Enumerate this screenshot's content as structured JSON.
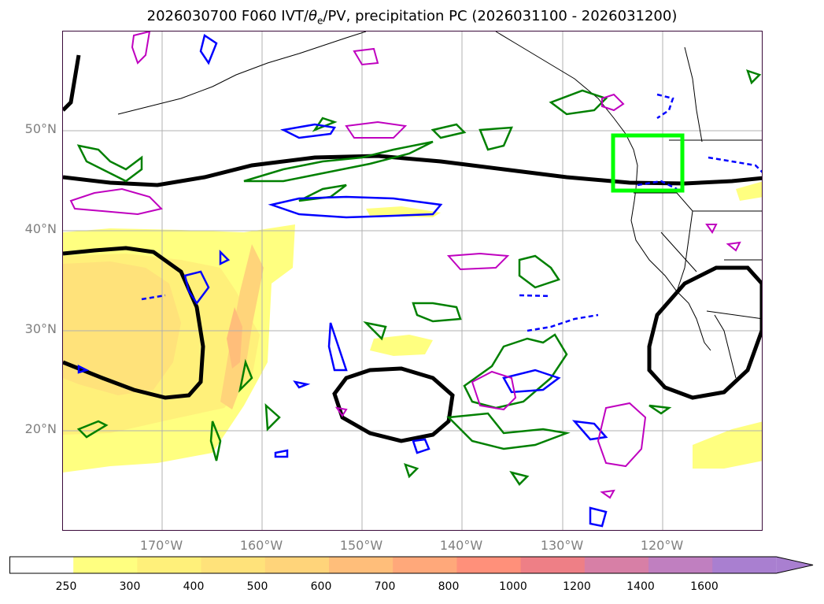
{
  "title_prefix": "2026030700 F060 IVT/",
  "title_theta": "θ",
  "title_sub": "e",
  "title_suffix": "/PV, precipitation PC (2026031100 - 2026031200)",
  "lat_labels": [
    "50°N",
    "40°N",
    "30°N",
    "20°N"
  ],
  "lon_labels": [
    "170°W",
    "160°W",
    "150°W",
    "140°W",
    "130°W",
    "120°W"
  ],
  "colorbar": {
    "ticks": [
      "250",
      "300",
      "400",
      "500",
      "600",
      "700",
      "800",
      "1000",
      "1200",
      "1400",
      "1600"
    ],
    "colors": [
      "#ffffff",
      "#ffff80",
      "#fff07a",
      "#ffe27a",
      "#ffd47a",
      "#ffbe7a",
      "#ffa87a",
      "#ff907a",
      "#ee7f86",
      "#d77fa6",
      "#c07fc0",
      "#a97fd0"
    ]
  },
  "colors": {
    "ivt_fill_light": "#ffff80",
    "ivt_fill_mid": "#ffd47a",
    "ivt_fill_dark": "#ffbe7a",
    "contour_black": "#000000",
    "contour_green": "#008000",
    "contour_blue": "#0000ff",
    "contour_magenta": "#bf00bf",
    "box_lime": "#00ff00",
    "coastline": "#000000",
    "grid": "#b0b0b0"
  }
}
